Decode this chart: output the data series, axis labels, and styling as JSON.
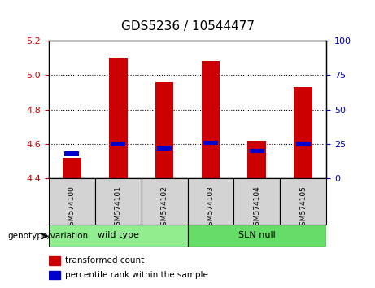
{
  "title": "GDS5236 / 10544477",
  "samples": [
    "GSM574100",
    "GSM574101",
    "GSM574102",
    "GSM574103",
    "GSM574104",
    "GSM574105"
  ],
  "groups": [
    "wild type",
    "wild type",
    "wild type",
    "SLN null",
    "SLN null",
    "SLN null"
  ],
  "group_labels": [
    "wild type",
    "SLN null"
  ],
  "group_colors": [
    "#90EE90",
    "#66DD66"
  ],
  "transformed_count": [
    4.52,
    5.1,
    4.96,
    5.08,
    4.62,
    4.93
  ],
  "percentile_rank": [
    18,
    25,
    22,
    26,
    20,
    25
  ],
  "ylim_left": [
    4.4,
    5.2
  ],
  "ylim_right": [
    0,
    100
  ],
  "yticks_left": [
    4.4,
    4.6,
    4.8,
    5.0,
    5.2
  ],
  "yticks_right": [
    0,
    25,
    50,
    75,
    100
  ],
  "bar_bottom": 4.4,
  "bar_width": 0.4,
  "red_color": "#CC0000",
  "blue_color": "#0000CC",
  "bg_color": "#FFFFFF",
  "grid_color": "#000000",
  "label_color_left": "#CC0000",
  "label_color_right": "#0000BB",
  "genotype_label": "genotype/variation",
  "legend_red": "transformed count",
  "legend_blue": "percentile rank within the sample"
}
